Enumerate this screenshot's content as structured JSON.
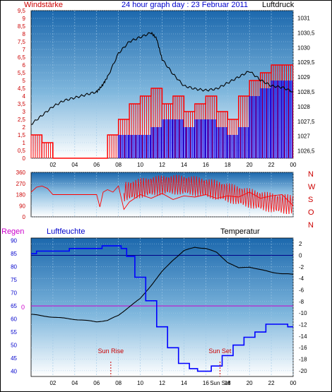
{
  "header": {
    "left_title": "Windstärke",
    "center_title": "24 hour graph day : 23 Februar 2011",
    "right_title": "Luftdruck"
  },
  "direction_labels": [
    "N",
    "W",
    "S",
    "O",
    "N"
  ],
  "lower_header": {
    "regen": "Regen",
    "luftfeuchte": "Luftfeuchte",
    "temperatur": "Temperatur"
  },
  "annotations": {
    "sun_rise": "Sun Rise",
    "sun_set": "Sun Set",
    "sun_set_axis": "Sun Set",
    "regen_zero": "0"
  },
  "colors": {
    "wind": "#ff0000",
    "wind_gust": "#0000ee",
    "pressure": "#000000",
    "humidity": "#0000ff",
    "temperature": "#000000",
    "rain": "#cc00cc",
    "sun": "#cc0000",
    "panel_top": "#1f6fb2",
    "panel_bottom": "#ffffff",
    "text_red": "#cc0000",
    "text_blue": "#0000cc"
  },
  "chart_data": [
    {
      "type": "line",
      "name": "wind_pressure",
      "x_tick_labels": [
        "02",
        "04",
        "06",
        "08",
        "10",
        "12",
        "14",
        "16",
        "18",
        "20",
        "22",
        "00"
      ],
      "y_left_ticks": [
        "0",
        "0,5",
        "1",
        "1,5",
        "2",
        "2,5",
        "3",
        "3,5",
        "4",
        "4,5",
        "5",
        "5,5",
        "6",
        "6,5",
        "7",
        "7,5",
        "8",
        "8,5",
        "9",
        "9,5"
      ],
      "y_right_ticks": [
        "1026,5",
        "1027",
        "1027,5",
        "1028",
        "1028,5",
        "1029",
        "1029,5",
        "1030",
        "1030,5",
        "1031"
      ],
      "ylim_left": [
        0,
        9.5
      ],
      "ylim_right": [
        1026.25,
        1031.25
      ],
      "xlim": [
        0,
        24
      ],
      "pressure": {
        "x": [
          0,
          1,
          2,
          3,
          4,
          5,
          6,
          6.5,
          7,
          8,
          9,
          10,
          11,
          11.5,
          12,
          13,
          14,
          15,
          16,
          17,
          18,
          19,
          20,
          21,
          22,
          23,
          24
        ],
        "y": [
          1027.4,
          1027.7,
          1028.0,
          1028.2,
          1028.3,
          1028.4,
          1028.5,
          1028.7,
          1029.0,
          1029.8,
          1030.2,
          1030.35,
          1030.5,
          1030.3,
          1029.6,
          1029.1,
          1028.7,
          1028.6,
          1028.55,
          1028.6,
          1028.8,
          1029.0,
          1029.2,
          1028.9,
          1028.7,
          1028.65,
          1028.5
        ]
      },
      "wind_avg": {
        "x": [
          0,
          1,
          2,
          3,
          4,
          5,
          6,
          7,
          8,
          9,
          10,
          11,
          12,
          13,
          14,
          15,
          16,
          17,
          18,
          19,
          20,
          21,
          22,
          23,
          24
        ],
        "y": [
          1.5,
          1,
          0,
          0,
          0,
          0,
          0,
          1.5,
          2.5,
          3.5,
          4,
          4.5,
          3.5,
          4,
          3,
          3.5,
          4,
          3,
          2.5,
          4,
          5,
          5.5,
          6,
          6,
          4
        ]
      },
      "wind_gust": {
        "x": [
          0,
          1,
          2,
          3,
          4,
          5,
          6,
          7,
          8,
          9,
          10,
          11,
          12,
          13,
          14,
          15,
          16,
          17,
          18,
          19,
          20,
          21,
          22,
          23,
          24
        ],
        "y": [
          0,
          0,
          0,
          0,
          0,
          0,
          0,
          0,
          1.5,
          1.5,
          1.5,
          2,
          2.5,
          2.5,
          2,
          2.5,
          2.5,
          2,
          1.5,
          2,
          4,
          4.5,
          5,
          5,
          2
        ]
      }
    },
    {
      "type": "line",
      "name": "wind_direction",
      "x_tick_labels": [
        "02",
        "04",
        "06",
        "08",
        "10",
        "12",
        "14",
        "16",
        "18",
        "20",
        "22",
        "00"
      ],
      "y_ticks": [
        "360",
        "270",
        "180",
        "90",
        "0"
      ],
      "ylim": [
        0,
        360
      ],
      "xlim": [
        0,
        24
      ],
      "direction": {
        "x": [
          0,
          0.5,
          1,
          1.5,
          2,
          3,
          4,
          5,
          6,
          6.3,
          6.6,
          7,
          7.5,
          8,
          8.5,
          9,
          10,
          11,
          12,
          13,
          14,
          15,
          16,
          17,
          18,
          19,
          20,
          21,
          22,
          23,
          24
        ],
        "y": [
          200,
          240,
          250,
          230,
          180,
          180,
          180,
          180,
          180,
          80,
          200,
          220,
          200,
          250,
          60,
          120,
          180,
          150,
          190,
          140,
          170,
          160,
          180,
          150,
          170,
          160,
          200,
          150,
          170,
          180,
          90
        ]
      }
    },
    {
      "type": "line",
      "name": "humidity_temperature",
      "x_tick_labels": [
        "02",
        "04",
        "06",
        "08",
        "10",
        "12",
        "14",
        "16",
        "18",
        "20",
        "22",
        "00"
      ],
      "y_left_ticks": [
        "40",
        "45",
        "50",
        "55",
        "60",
        "65",
        "70",
        "75",
        "80",
        "85",
        "90"
      ],
      "y_right_ticks": [
        "2",
        "0",
        "-2",
        "-4",
        "-6",
        "-8",
        "-10",
        "-12",
        "-14",
        "-16",
        "-18",
        "-20"
      ],
      "ylim_left": [
        38,
        91
      ],
      "ylim_right": [
        -21,
        3
      ],
      "xlim": [
        0,
        24
      ],
      "humidity": {
        "x": [
          0,
          1,
          2,
          3,
          4,
          5,
          6,
          7,
          8,
          8.5,
          9,
          10,
          11,
          12,
          13,
          14,
          15,
          15.5,
          16,
          17,
          18,
          19,
          20,
          21,
          22,
          23,
          24
        ],
        "y": [
          85,
          86,
          86,
          86,
          87,
          87,
          87,
          88,
          88,
          87,
          84,
          76,
          67,
          57,
          49,
          43,
          41,
          40,
          40,
          42,
          46,
          50,
          53,
          55,
          58,
          58,
          57
        ]
      },
      "temperature": {
        "x": [
          0,
          1,
          2,
          3,
          4,
          5,
          6,
          7,
          8,
          9,
          10,
          11,
          12,
          13,
          14,
          15,
          16,
          17,
          18,
          19,
          20,
          21,
          22,
          23,
          24
        ],
        "y": [
          -10.2,
          -10.5,
          -10.7,
          -10.9,
          -11.1,
          -11.3,
          -11.5,
          -11.3,
          -10.4,
          -8.9,
          -7.5,
          -5.2,
          -2.8,
          -0.8,
          0.8,
          1.4,
          1.2,
          0.5,
          -1.2,
          -2.2,
          -2.0,
          -2.5,
          -2.9,
          -3.2,
          -3.3
        ]
      },
      "sun_rise_x": 7.3,
      "sun_set_x": 17.3,
      "rain_y": 0
    }
  ]
}
